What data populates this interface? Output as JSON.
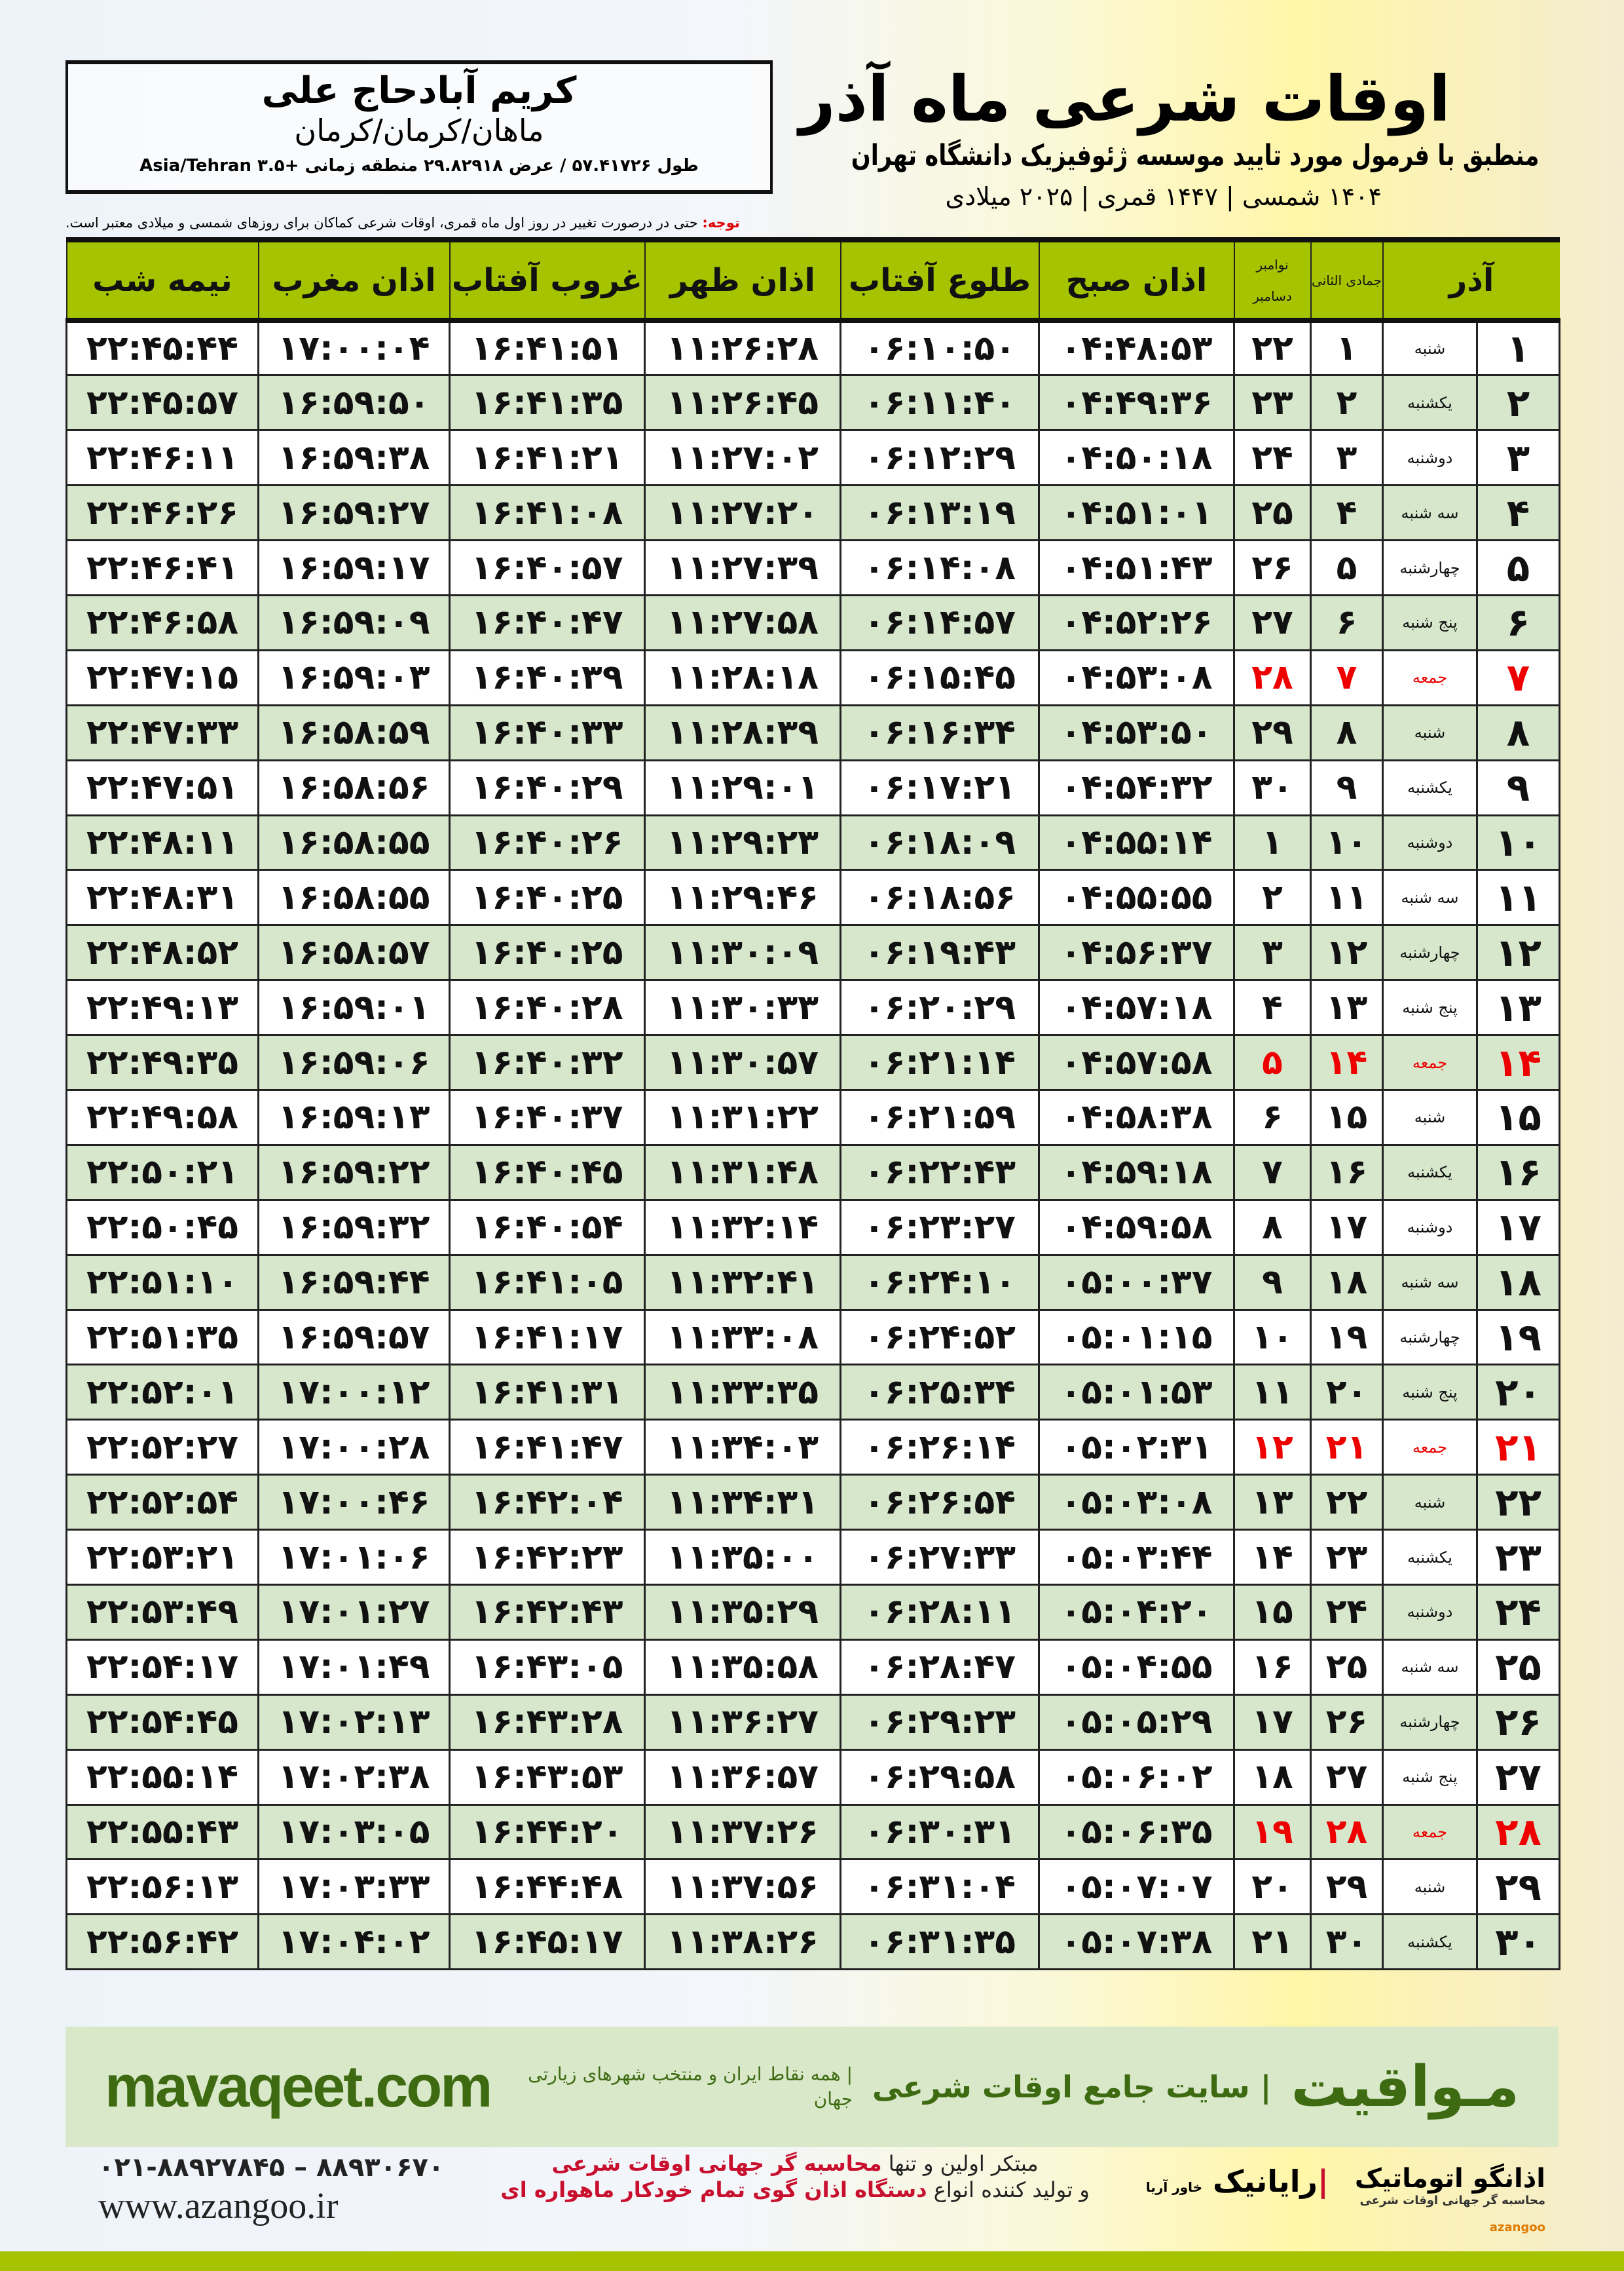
{
  "location": {
    "city": "کریم آبادحاج علی",
    "province": "ماهان/کرمان/کرمان",
    "coords": "طول ۵۷.۴۱۷۲۶ / عرض ۲۹.۸۲۹۱۸ منطقه زمانی +۳.۵ Asia/Tehran"
  },
  "header": {
    "title": "اوقات شرعی ماه آذر",
    "subtitle": "منطبق با فرمول مورد تایید موسسه ژئوفیزیک دانشگاه تهران",
    "years": "۱۴۰۴ شمسی | ۱۴۴۷ قمری | ۲۰۲۵ میلادی"
  },
  "note": {
    "label": "توجه:",
    "text": " حتی در درصورت تغییر در روز اول ماه قمری، اوقات شرعی کماکان برای روزهای شمسی و میلادی معتبر است."
  },
  "table": {
    "columns": [
      "آذر",
      "جمادی الثانی",
      "نوامبر",
      "دسامبر",
      "اذان صبح",
      "طلوع آفتاب",
      "اذان ظهر",
      "غروب آفتاب",
      "اذان مغرب",
      "نیمه شب"
    ],
    "friday_color": "#e00000",
    "header_color": "#a6c300",
    "rows": [
      [
        "۱",
        "شنبه",
        "۱",
        "۲۲",
        "۰۴:۴۸:۵۳",
        "۰۶:۱۰:۵۰",
        "۱۱:۲۶:۲۸",
        "۱۶:۴۱:۵۱",
        "۱۷:۰۰:۰۴",
        "۲۲:۴۵:۴۴"
      ],
      [
        "۲",
        "یکشنبه",
        "۲",
        "۲۳",
        "۰۴:۴۹:۳۶",
        "۰۶:۱۱:۴۰",
        "۱۱:۲۶:۴۵",
        "۱۶:۴۱:۳۵",
        "۱۶:۵۹:۵۰",
        "۲۲:۴۵:۵۷"
      ],
      [
        "۳",
        "دوشنبه",
        "۳",
        "۲۴",
        "۰۴:۵۰:۱۸",
        "۰۶:۱۲:۲۹",
        "۱۱:۲۷:۰۲",
        "۱۶:۴۱:۲۱",
        "۱۶:۵۹:۳۸",
        "۲۲:۴۶:۱۱"
      ],
      [
        "۴",
        "سه شنبه",
        "۴",
        "۲۵",
        "۰۴:۵۱:۰۱",
        "۰۶:۱۳:۱۹",
        "۱۱:۲۷:۲۰",
        "۱۶:۴۱:۰۸",
        "۱۶:۵۹:۲۷",
        "۲۲:۴۶:۲۶"
      ],
      [
        "۵",
        "چهارشنبه",
        "۵",
        "۲۶",
        "۰۴:۵۱:۴۳",
        "۰۶:۱۴:۰۸",
        "۱۱:۲۷:۳۹",
        "۱۶:۴۰:۵۷",
        "۱۶:۵۹:۱۷",
        "۲۲:۴۶:۴۱"
      ],
      [
        "۶",
        "پنج شنبه",
        "۶",
        "۲۷",
        "۰۴:۵۲:۲۶",
        "۰۶:۱۴:۵۷",
        "۱۱:۲۷:۵۸",
        "۱۶:۴۰:۴۷",
        "۱۶:۵۹:۰۹",
        "۲۲:۴۶:۵۸"
      ],
      [
        "۷",
        "جمعه",
        "۷",
        "۲۸",
        "۰۴:۵۳:۰۸",
        "۰۶:۱۵:۴۵",
        "۱۱:۲۸:۱۸",
        "۱۶:۴۰:۳۹",
        "۱۶:۵۹:۰۳",
        "۲۲:۴۷:۱۵"
      ],
      [
        "۸",
        "شنبه",
        "۸",
        "۲۹",
        "۰۴:۵۳:۵۰",
        "۰۶:۱۶:۳۴",
        "۱۱:۲۸:۳۹",
        "۱۶:۴۰:۳۳",
        "۱۶:۵۸:۵۹",
        "۲۲:۴۷:۳۳"
      ],
      [
        "۹",
        "یکشنبه",
        "۹",
        "۳۰",
        "۰۴:۵۴:۳۲",
        "۰۶:۱۷:۲۱",
        "۱۱:۲۹:۰۱",
        "۱۶:۴۰:۲۹",
        "۱۶:۵۸:۵۶",
        "۲۲:۴۷:۵۱"
      ],
      [
        "۱۰",
        "دوشنبه",
        "۱۰",
        "۱",
        "۰۴:۵۵:۱۴",
        "۰۶:۱۸:۰۹",
        "۱۱:۲۹:۲۳",
        "۱۶:۴۰:۲۶",
        "۱۶:۵۸:۵۵",
        "۲۲:۴۸:۱۱"
      ],
      [
        "۱۱",
        "سه شنبه",
        "۱۱",
        "۲",
        "۰۴:۵۵:۵۵",
        "۰۶:۱۸:۵۶",
        "۱۱:۲۹:۴۶",
        "۱۶:۴۰:۲۵",
        "۱۶:۵۸:۵۵",
        "۲۲:۴۸:۳۱"
      ],
      [
        "۱۲",
        "چهارشنبه",
        "۱۲",
        "۳",
        "۰۴:۵۶:۳۷",
        "۰۶:۱۹:۴۳",
        "۱۱:۳۰:۰۹",
        "۱۶:۴۰:۲۵",
        "۱۶:۵۸:۵۷",
        "۲۲:۴۸:۵۲"
      ],
      [
        "۱۳",
        "پنج شنبه",
        "۱۳",
        "۴",
        "۰۴:۵۷:۱۸",
        "۰۶:۲۰:۲۹",
        "۱۱:۳۰:۳۳",
        "۱۶:۴۰:۲۸",
        "۱۶:۵۹:۰۱",
        "۲۲:۴۹:۱۳"
      ],
      [
        "۱۴",
        "جمعه",
        "۱۴",
        "۵",
        "۰۴:۵۷:۵۸",
        "۰۶:۲۱:۱۴",
        "۱۱:۳۰:۵۷",
        "۱۶:۴۰:۳۲",
        "۱۶:۵۹:۰۶",
        "۲۲:۴۹:۳۵"
      ],
      [
        "۱۵",
        "شنبه",
        "۱۵",
        "۶",
        "۰۴:۵۸:۳۸",
        "۰۶:۲۱:۵۹",
        "۱۱:۳۱:۲۲",
        "۱۶:۴۰:۳۷",
        "۱۶:۵۹:۱۳",
        "۲۲:۴۹:۵۸"
      ],
      [
        "۱۶",
        "یکشنبه",
        "۱۶",
        "۷",
        "۰۴:۵۹:۱۸",
        "۰۶:۲۲:۴۳",
        "۱۱:۳۱:۴۸",
        "۱۶:۴۰:۴۵",
        "۱۶:۵۹:۲۲",
        "۲۲:۵۰:۲۱"
      ],
      [
        "۱۷",
        "دوشنبه",
        "۱۷",
        "۸",
        "۰۴:۵۹:۵۸",
        "۰۶:۲۳:۲۷",
        "۱۱:۳۲:۱۴",
        "۱۶:۴۰:۵۴",
        "۱۶:۵۹:۳۲",
        "۲۲:۵۰:۴۵"
      ],
      [
        "۱۸",
        "سه شنبه",
        "۱۸",
        "۹",
        "۰۵:۰۰:۳۷",
        "۰۶:۲۴:۱۰",
        "۱۱:۳۲:۴۱",
        "۱۶:۴۱:۰۵",
        "۱۶:۵۹:۴۴",
        "۲۲:۵۱:۱۰"
      ],
      [
        "۱۹",
        "چهارشنبه",
        "۱۹",
        "۱۰",
        "۰۵:۰۱:۱۵",
        "۰۶:۲۴:۵۲",
        "۱۱:۳۳:۰۸",
        "۱۶:۴۱:۱۷",
        "۱۶:۵۹:۵۷",
        "۲۲:۵۱:۳۵"
      ],
      [
        "۲۰",
        "پنج شنبه",
        "۲۰",
        "۱۱",
        "۰۵:۰۱:۵۳",
        "۰۶:۲۵:۳۴",
        "۱۱:۳۳:۳۵",
        "۱۶:۴۱:۳۱",
        "۱۷:۰۰:۱۲",
        "۲۲:۵۲:۰۱"
      ],
      [
        "۲۱",
        "جمعه",
        "۲۱",
        "۱۲",
        "۰۵:۰۲:۳۱",
        "۰۶:۲۶:۱۴",
        "۱۱:۳۴:۰۳",
        "۱۶:۴۱:۴۷",
        "۱۷:۰۰:۲۸",
        "۲۲:۵۲:۲۷"
      ],
      [
        "۲۲",
        "شنبه",
        "۲۲",
        "۱۳",
        "۰۵:۰۳:۰۸",
        "۰۶:۲۶:۵۴",
        "۱۱:۳۴:۳۱",
        "۱۶:۴۲:۰۴",
        "۱۷:۰۰:۴۶",
        "۲۲:۵۲:۵۴"
      ],
      [
        "۲۳",
        "یکشنبه",
        "۲۳",
        "۱۴",
        "۰۵:۰۳:۴۴",
        "۰۶:۲۷:۳۳",
        "۱۱:۳۵:۰۰",
        "۱۶:۴۲:۲۳",
        "۱۷:۰۱:۰۶",
        "۲۲:۵۳:۲۱"
      ],
      [
        "۲۴",
        "دوشنبه",
        "۲۴",
        "۱۵",
        "۰۵:۰۴:۲۰",
        "۰۶:۲۸:۱۱",
        "۱۱:۳۵:۲۹",
        "۱۶:۴۲:۴۳",
        "۱۷:۰۱:۲۷",
        "۲۲:۵۳:۴۹"
      ],
      [
        "۲۵",
        "سه شنبه",
        "۲۵",
        "۱۶",
        "۰۵:۰۴:۵۵",
        "۰۶:۲۸:۴۷",
        "۱۱:۳۵:۵۸",
        "۱۶:۴۳:۰۵",
        "۱۷:۰۱:۴۹",
        "۲۲:۵۴:۱۷"
      ],
      [
        "۲۶",
        "چهارشنبه",
        "۲۶",
        "۱۷",
        "۰۵:۰۵:۲۹",
        "۰۶:۲۹:۲۳",
        "۱۱:۳۶:۲۷",
        "۱۶:۴۳:۲۸",
        "۱۷:۰۲:۱۳",
        "۲۲:۵۴:۴۵"
      ],
      [
        "۲۷",
        "پنج شنبه",
        "۲۷",
        "۱۸",
        "۰۵:۰۶:۰۲",
        "۰۶:۲۹:۵۸",
        "۱۱:۳۶:۵۷",
        "۱۶:۴۳:۵۳",
        "۱۷:۰۲:۳۸",
        "۲۲:۵۵:۱۴"
      ],
      [
        "۲۸",
        "جمعه",
        "۲۸",
        "۱۹",
        "۰۵:۰۶:۳۵",
        "۰۶:۳۰:۳۱",
        "۱۱:۳۷:۲۶",
        "۱۶:۴۴:۲۰",
        "۱۷:۰۳:۰۵",
        "۲۲:۵۵:۴۳"
      ],
      [
        "۲۹",
        "شنبه",
        "۲۹",
        "۲۰",
        "۰۵:۰۷:۰۷",
        "۰۶:۳۱:۰۴",
        "۱۱:۳۷:۵۶",
        "۱۶:۴۴:۴۸",
        "۱۷:۰۳:۳۳",
        "۲۲:۵۶:۱۳"
      ],
      [
        "۳۰",
        "یکشنبه",
        "۳۰",
        "۲۱",
        "۰۵:۰۷:۳۸",
        "۰۶:۳۱:۳۵",
        "۱۱:۳۸:۲۶",
        "۱۶:۴۵:۱۷",
        "۱۷:۰۴:۰۲",
        "۲۲:۵۶:۴۲"
      ]
    ]
  },
  "banner": {
    "brand": "مـواقیت",
    "tagline": "| سایت جامع اوقات شرعی",
    "tagline2": "| همه نقاط ایران و منتخب شهرهای زیارتی جهان",
    "url": "mavaqeet.com"
  },
  "footer": {
    "phone": "۰۲۱-۸۸۹۲۷۸۴۵ – ۸۸۹۳۰۶۷۰",
    "site": "www.azangoo.ir",
    "promo1a": "مبتکر اولین و تنها ",
    "promo1b": "محاسبه گر جهانی اوقات شرعی",
    "promo2a": "و تولید کننده انواع ",
    "promo2b": "دستگاه اذان گوی تمام خودکار ماهواره ای",
    "logo_rayanik": "رایانیک",
    "logo_rayanik_sub": "خاور آریا",
    "logo_azangoo": "اذانگو اتوماتیک",
    "logo_azangoo_sub": "محاسبه گر جهانی اوقات شرعی",
    "logo_azangoo_en": "azangoo"
  }
}
